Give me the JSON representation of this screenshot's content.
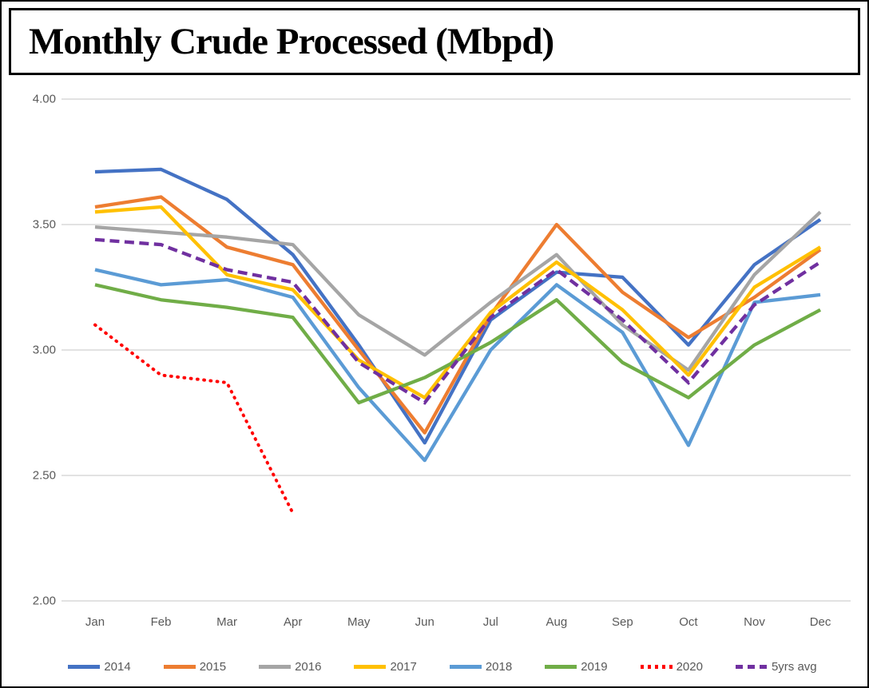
{
  "title": "Monthly Crude Processed (Mbpd)",
  "colors": {
    "axis_text": "#595959",
    "gridline": "#D9D9D9",
    "frame_border": "#000000"
  },
  "chart_data": {
    "type": "line",
    "title": "Monthly Crude Processed (Mbpd)",
    "unit": "Mbpd",
    "xlabel": "",
    "ylabel": "",
    "grid": true,
    "legend_position": "bottom",
    "categories": [
      "Jan",
      "Feb",
      "Mar",
      "Apr",
      "May",
      "Jun",
      "Jul",
      "Aug",
      "Sep",
      "Oct",
      "Nov",
      "Dec"
    ],
    "y_axis": {
      "min": 2.0,
      "max": 4.0,
      "step": 0.5,
      "tick_labels": [
        "4.00",
        "3.50",
        "3.00",
        "2.50",
        "2.00"
      ],
      "tick_values": [
        4.0,
        3.5,
        3.0,
        2.5,
        2.0
      ]
    },
    "series": [
      {
        "name": "2014",
        "color": "#4472C4",
        "style": "solid",
        "values": [
          3.71,
          3.72,
          3.6,
          3.38,
          3.02,
          2.63,
          3.12,
          3.31,
          3.29,
          3.02,
          3.34,
          3.52
        ]
      },
      {
        "name": "2015",
        "color": "#ED7D31",
        "style": "solid",
        "values": [
          3.57,
          3.61,
          3.41,
          3.34,
          3.0,
          2.67,
          3.14,
          3.5,
          3.23,
          3.05,
          3.21,
          3.4
        ]
      },
      {
        "name": "2016",
        "color": "#A5A5A5",
        "style": "solid",
        "values": [
          3.49,
          3.47,
          3.45,
          3.42,
          3.14,
          2.98,
          3.19,
          3.38,
          3.1,
          2.92,
          3.3,
          3.55
        ]
      },
      {
        "name": "2017",
        "color": "#FFC000",
        "style": "solid",
        "values": [
          3.55,
          3.57,
          3.3,
          3.24,
          2.96,
          2.81,
          3.15,
          3.35,
          3.16,
          2.9,
          3.25,
          3.41
        ]
      },
      {
        "name": "2018",
        "color": "#5B9BD5",
        "style": "solid",
        "values": [
          3.32,
          3.26,
          3.28,
          3.21,
          2.85,
          2.56,
          3.0,
          3.26,
          3.07,
          2.62,
          3.19,
          3.22
        ]
      },
      {
        "name": "2019",
        "color": "#70AD47",
        "style": "solid",
        "values": [
          3.26,
          3.2,
          3.17,
          3.13,
          2.79,
          2.89,
          3.03,
          3.2,
          2.95,
          2.81,
          3.02,
          3.16
        ]
      },
      {
        "name": "2020",
        "color": "#FF0000",
        "style": "dotted",
        "values": [
          3.1,
          2.9,
          2.87,
          2.35,
          null,
          null,
          null,
          null,
          null,
          null,
          null,
          null
        ]
      },
      {
        "name": "5yrs avg",
        "color": "#7030A0",
        "style": "dashed",
        "values": [
          3.44,
          3.42,
          3.32,
          3.27,
          2.95,
          2.79,
          3.13,
          3.32,
          3.12,
          2.87,
          3.18,
          3.35
        ]
      }
    ]
  }
}
